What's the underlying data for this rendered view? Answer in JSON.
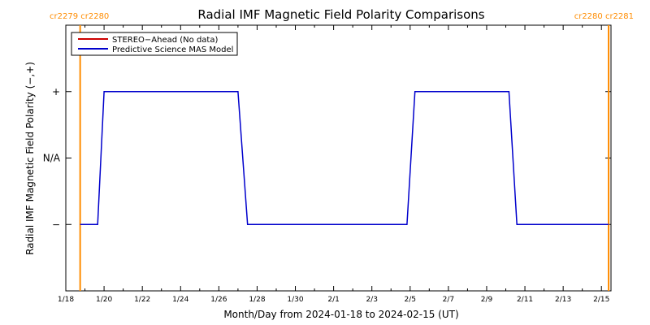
{
  "chart_data": {
    "type": "line",
    "title": "Radial IMF Magnetic Field Polarity Comparisons",
    "xlabel": "Month/Day from 2024-01-18 to 2024-02-15 (UT)",
    "ylabel": "Radial IMF Magnetic Field Polarity (−,+)",
    "x_tick_labels": [
      "1/18",
      "1/20",
      "1/22",
      "1/24",
      "1/26",
      "1/28",
      "1/30",
      "2/1",
      "2/3",
      "2/5",
      "2/7",
      "2/9",
      "2/11",
      "2/13",
      "2/15"
    ],
    "xlim": [
      "2024-01-18T00:00",
      "2024-02-15T12:00"
    ],
    "y_tick_labels": [
      "+",
      "N/A",
      "−"
    ],
    "y_tick_values": [
      1,
      0,
      -1
    ],
    "ylim": [
      -2,
      2
    ],
    "carrington_markers": [
      {
        "label": "cr2279 cr2280",
        "x": "2024-01-18T18:00"
      },
      {
        "label": "cr2280 cr2281",
        "x": "2024-02-15T09:00"
      }
    ],
    "legend": [
      {
        "label": "STEREO−Ahead (No data)",
        "color": "#cc0000"
      },
      {
        "label": "Predictive Science MAS Model",
        "color": "#0000cc"
      }
    ],
    "series": [
      {
        "name": "Predictive Science MAS Model",
        "color": "#0000cc",
        "points": [
          [
            "2024-01-18T18:00",
            -1
          ],
          [
            "2024-01-19T16:00",
            -1
          ],
          [
            "2024-01-20T00:00",
            1
          ],
          [
            "2024-01-27T00:00",
            1
          ],
          [
            "2024-01-27T12:00",
            -1
          ],
          [
            "2024-02-04T20:00",
            -1
          ],
          [
            "2024-02-05T06:00",
            1
          ],
          [
            "2024-02-10T04:00",
            1
          ],
          [
            "2024-02-10T14:00",
            -1
          ],
          [
            "2024-02-15T09:00",
            -1
          ]
        ]
      }
    ],
    "marker_color": "#ff8c00",
    "grid": false,
    "legend_position": "top-left"
  }
}
